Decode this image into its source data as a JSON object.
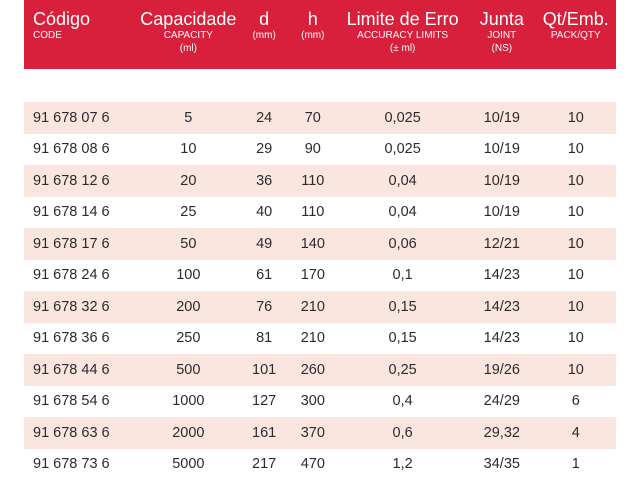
{
  "header": {
    "code": {
      "main": "Código",
      "sub": "CODE"
    },
    "capacity": {
      "main": "Capacidade",
      "sub": "CAPACITY",
      "unit": "(ml)"
    },
    "d": {
      "main": "d",
      "unit": "(mm)"
    },
    "h": {
      "main": "h",
      "unit": "(mm)"
    },
    "limit": {
      "main": "Limite de Erro",
      "sub": "ACCURACY LIMITS",
      "unit": "(± ml)"
    },
    "joint": {
      "main": "Junta",
      "sub": "JOINT",
      "unit": "(NS)"
    },
    "qty": {
      "main": "Qt/Emb.",
      "sub": "PACK/QTY"
    }
  },
  "colors": {
    "header_bg": "#d81f3b",
    "row_shaded": "#fbe6df",
    "text": "#2b2b2b"
  },
  "rows": [
    {
      "code": "91 678 07 6",
      "capacity": "5",
      "d": "24",
      "h": "70",
      "limit": "0,025",
      "joint": "10/19",
      "qty": "10"
    },
    {
      "code": "91 678 08 6",
      "capacity": "10",
      "d": "29",
      "h": "90",
      "limit": "0,025",
      "joint": "10/19",
      "qty": "10"
    },
    {
      "code": "91 678 12 6",
      "capacity": "20",
      "d": "36",
      "h": "110",
      "limit": "0,04",
      "joint": "10/19",
      "qty": "10"
    },
    {
      "code": "91 678 14 6",
      "capacity": "25",
      "d": "40",
      "h": "110",
      "limit": "0,04",
      "joint": "10/19",
      "qty": "10"
    },
    {
      "code": "91 678 17 6",
      "capacity": "50",
      "d": "49",
      "h": "140",
      "limit": "0,06",
      "joint": "12/21",
      "qty": "10"
    },
    {
      "code": "91 678 24 6",
      "capacity": "100",
      "d": "61",
      "h": "170",
      "limit": "0,1",
      "joint": "14/23",
      "qty": "10"
    },
    {
      "code": "91 678 32 6",
      "capacity": "200",
      "d": "76",
      "h": "210",
      "limit": "0,15",
      "joint": "14/23",
      "qty": "10"
    },
    {
      "code": "91 678 36 6",
      "capacity": "250",
      "d": "81",
      "h": "210",
      "limit": "0,15",
      "joint": "14/23",
      "qty": "10"
    },
    {
      "code": "91 678 44 6",
      "capacity": "500",
      "d": "101",
      "h": "260",
      "limit": "0,25",
      "joint": "19/26",
      "qty": "10"
    },
    {
      "code": "91 678 54 6",
      "capacity": "1000",
      "d": "127",
      "h": "300",
      "limit": "0,4",
      "joint": "24/29",
      "qty": "6"
    },
    {
      "code": "91 678 63 6",
      "capacity": "2000",
      "d": "161",
      "h": "370",
      "limit": "0,6",
      "joint": "29,32",
      "qty": "4"
    },
    {
      "code": "91 678 73 6",
      "capacity": "5000",
      "d": "217",
      "h": "470",
      "limit": "1,2",
      "joint": "34/35",
      "qty": "1"
    }
  ]
}
